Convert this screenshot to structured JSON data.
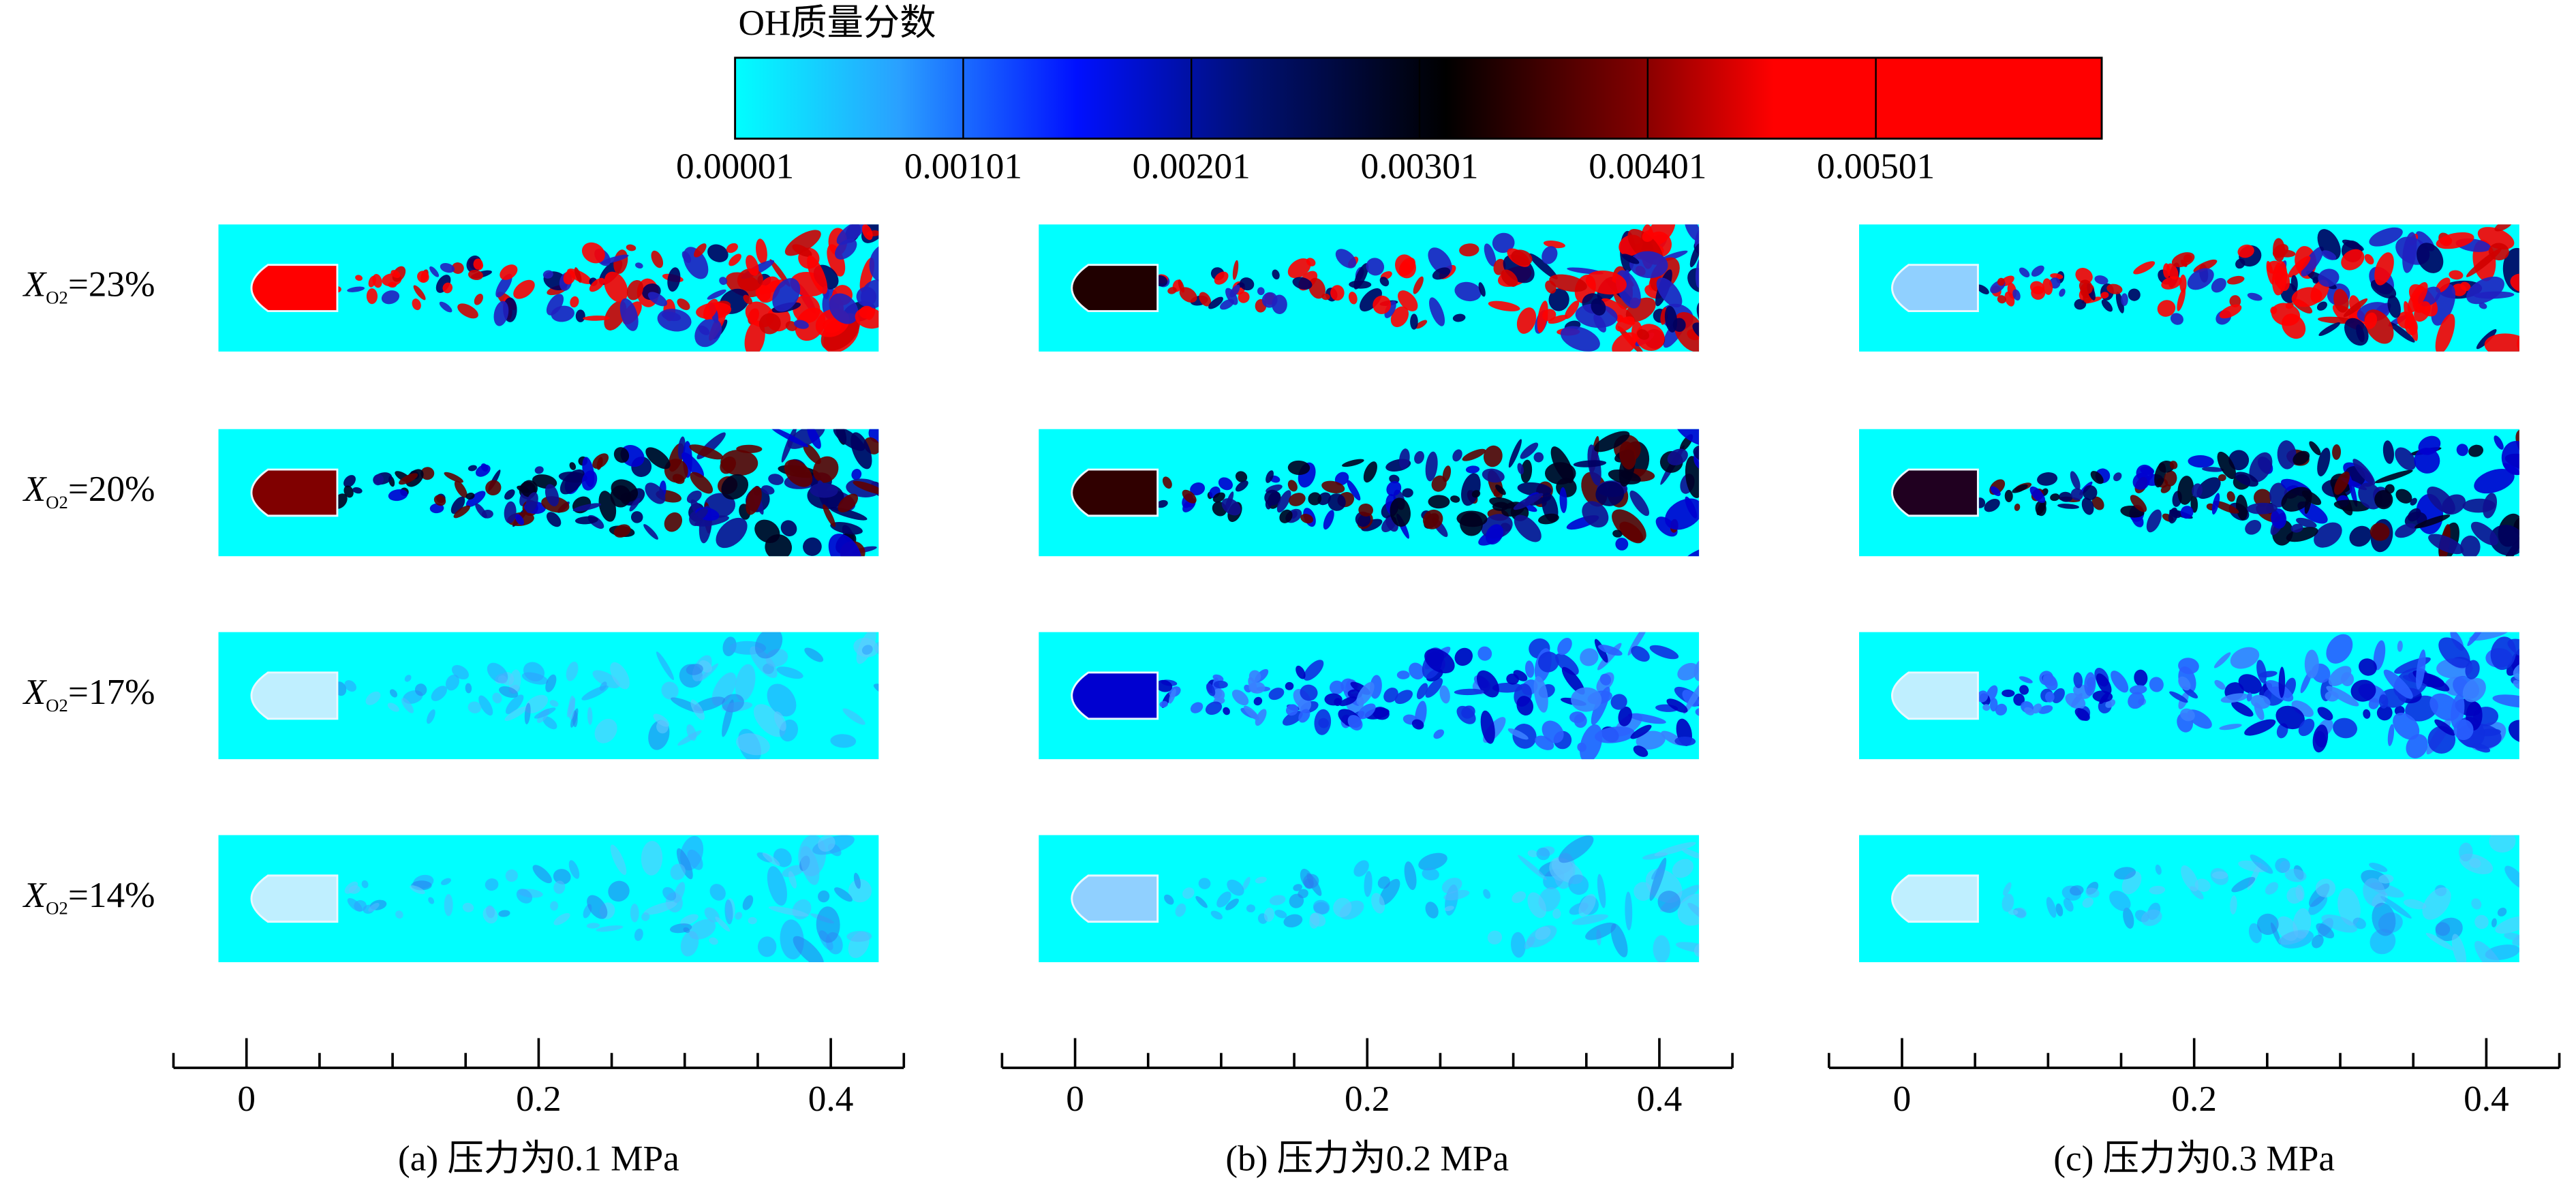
{
  "colorbar": {
    "title": "OH质量分数",
    "range": [
      1e-05,
      0.006
    ],
    "ticks": [
      1e-05,
      0.00101,
      0.00201,
      0.00301,
      0.00401,
      0.00501
    ]
  },
  "rows": [
    {
      "var": "X",
      "sub": "O2",
      "value": "=23%"
    },
    {
      "var": "X",
      "sub": "O2",
      "value": "=20%"
    },
    {
      "var": "X",
      "sub": "O2",
      "value": "=17%"
    },
    {
      "var": "X",
      "sub": "O2",
      "value": "=14%"
    }
  ],
  "axis": {
    "xlim": [
      -0.05,
      0.45
    ],
    "xticks": [
      0,
      0.2,
      0.4
    ],
    "minor_ticks": [
      0.05,
      0.1,
      0.15,
      0.25,
      0.3,
      0.35
    ]
  },
  "panels": [
    {
      "caption": "(a) 压力为0.1 MPa"
    },
    {
      "caption": "(b) 压力为0.2 MPa"
    },
    {
      "caption": "(c) 压力为0.3 MPa"
    }
  ]
}
